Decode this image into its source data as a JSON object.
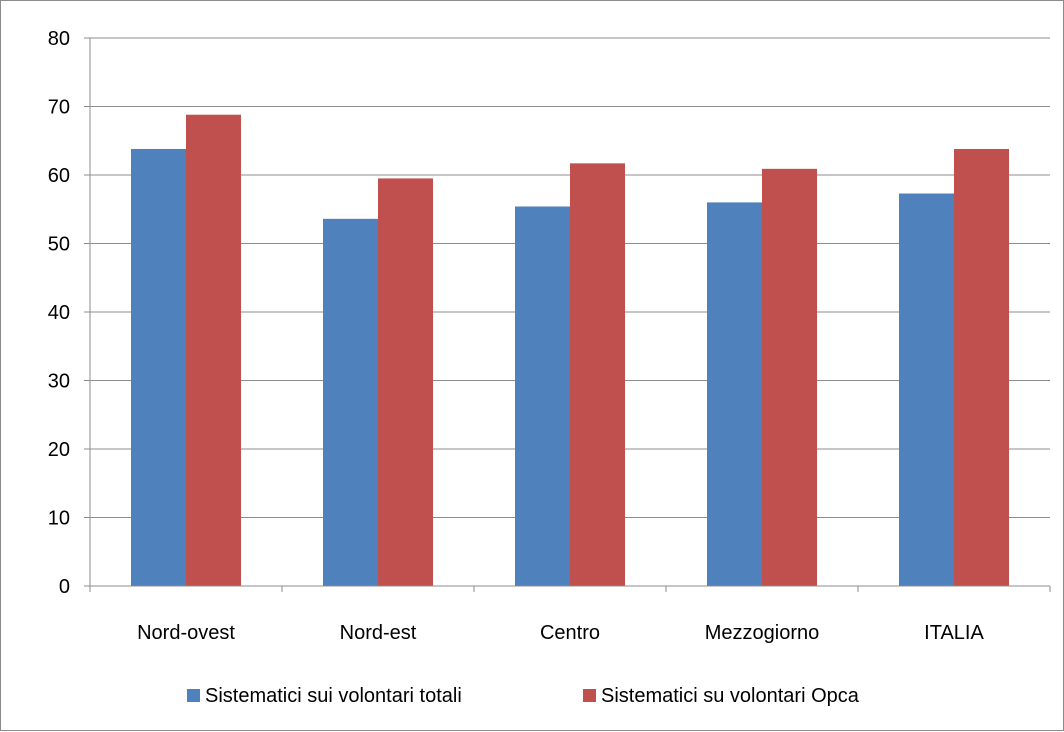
{
  "chart_data": {
    "type": "bar",
    "categories": [
      "Nord-ovest",
      "Nord-est",
      "Centro",
      "Mezzogiorno",
      "ITALIA"
    ],
    "series": [
      {
        "name": "Sistematici sui volontari totali",
        "color": "#4F81BD",
        "values": [
          63.8,
          53.6,
          55.4,
          56.0,
          57.3
        ]
      },
      {
        "name": "Sistematici su volontari Opca",
        "color": "#C0504D",
        "values": [
          68.8,
          59.5,
          61.7,
          60.9,
          63.8
        ]
      }
    ],
    "ylim": [
      0,
      80
    ],
    "yticks": [
      "0",
      "10",
      "20",
      "30",
      "40",
      "50",
      "60",
      "70",
      "80"
    ],
    "grid": true,
    "legend_position": "bottom"
  }
}
